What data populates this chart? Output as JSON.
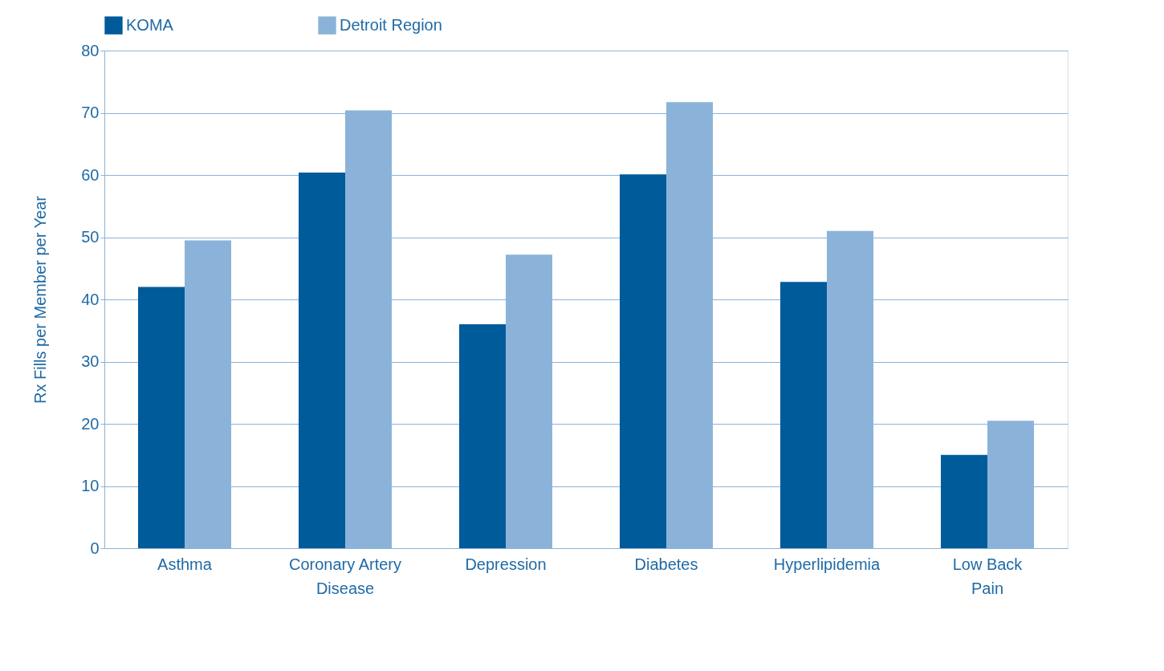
{
  "chart_data": {
    "type": "bar",
    "ylabel": "Rx Fills per Member per Year",
    "categories": [
      "Asthma",
      "Coronary Artery Disease",
      "Depression",
      "Diabetes",
      "Hyperlipidemia",
      "Low Back Pain"
    ],
    "series": [
      {
        "name": "KOMA",
        "color": "#005b9a",
        "values": [
          42,
          60.4,
          36,
          60.1,
          42.8,
          15
        ]
      },
      {
        "name": "Detroit Region",
        "color": "#8bb3d9",
        "values": [
          49.5,
          70.4,
          47.2,
          71.7,
          51,
          20.5
        ]
      }
    ],
    "ylim": [
      0,
      80
    ],
    "yticks": [
      0,
      10,
      20,
      30,
      40,
      50,
      60,
      70,
      80
    ],
    "grid": "y",
    "legend": "top"
  }
}
